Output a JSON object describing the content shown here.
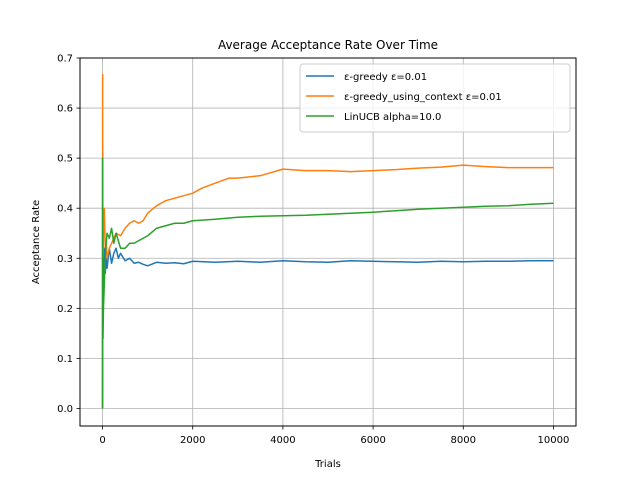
{
  "chart_data": {
    "type": "line",
    "title": "Average Acceptance Rate Over Time",
    "xlabel": "Trials",
    "ylabel": "Acceptance Rate",
    "xlim": [
      -500,
      10500
    ],
    "ylim": [
      -0.035,
      0.7
    ],
    "xticks": [
      0,
      2000,
      4000,
      6000,
      8000,
      10000
    ],
    "yticks": [
      0.0,
      0.1,
      0.2,
      0.3,
      0.4,
      0.5,
      0.6,
      0.7
    ],
    "xtick_labels": [
      "0",
      "2000",
      "4000",
      "6000",
      "8000",
      "10000"
    ],
    "ytick_labels": [
      "0.0",
      "0.1",
      "0.2",
      "0.3",
      "0.4",
      "0.5",
      "0.6",
      "0.7"
    ],
    "grid": true,
    "legend_position": "top-right",
    "series": [
      {
        "name": "ε-greedy ε=0.01",
        "color": "#1f77b4",
        "points": [
          [
            0,
            0.0
          ],
          [
            2,
            0.5
          ],
          [
            5,
            0.3
          ],
          [
            10,
            0.2
          ],
          [
            20,
            0.28
          ],
          [
            40,
            0.32
          ],
          [
            60,
            0.27
          ],
          [
            80,
            0.3
          ],
          [
            100,
            0.28
          ],
          [
            150,
            0.32
          ],
          [
            200,
            0.29
          ],
          [
            250,
            0.31
          ],
          [
            300,
            0.32
          ],
          [
            350,
            0.3
          ],
          [
            400,
            0.31
          ],
          [
            500,
            0.295
          ],
          [
            600,
            0.3
          ],
          [
            700,
            0.29
          ],
          [
            800,
            0.292
          ],
          [
            900,
            0.288
          ],
          [
            1000,
            0.285
          ],
          [
            1200,
            0.292
          ],
          [
            1400,
            0.29
          ],
          [
            1600,
            0.291
          ],
          [
            1800,
            0.289
          ],
          [
            2000,
            0.294
          ],
          [
            2500,
            0.292
          ],
          [
            3000,
            0.294
          ],
          [
            3500,
            0.292
          ],
          [
            4000,
            0.295
          ],
          [
            4500,
            0.293
          ],
          [
            5000,
            0.292
          ],
          [
            5500,
            0.295
          ],
          [
            6000,
            0.294
          ],
          [
            6500,
            0.293
          ],
          [
            7000,
            0.292
          ],
          [
            7500,
            0.294
          ],
          [
            8000,
            0.293
          ],
          [
            8500,
            0.294
          ],
          [
            9000,
            0.294
          ],
          [
            9500,
            0.295
          ],
          [
            10000,
            0.295
          ]
        ]
      },
      {
        "name": "ε-greedy_using_context ε=0.01",
        "color": "#ff7f0e",
        "points": [
          [
            0,
            0.0
          ],
          [
            2,
            0.667
          ],
          [
            5,
            0.4
          ],
          [
            10,
            0.3
          ],
          [
            20,
            0.35
          ],
          [
            40,
            0.4
          ],
          [
            60,
            0.32
          ],
          [
            80,
            0.34
          ],
          [
            100,
            0.3
          ],
          [
            150,
            0.32
          ],
          [
            200,
            0.33
          ],
          [
            300,
            0.35
          ],
          [
            400,
            0.345
          ],
          [
            500,
            0.36
          ],
          [
            600,
            0.37
          ],
          [
            700,
            0.375
          ],
          [
            800,
            0.37
          ],
          [
            900,
            0.375
          ],
          [
            1000,
            0.39
          ],
          [
            1200,
            0.405
          ],
          [
            1400,
            0.415
          ],
          [
            1600,
            0.42
          ],
          [
            1800,
            0.425
          ],
          [
            2000,
            0.43
          ],
          [
            2200,
            0.44
          ],
          [
            2500,
            0.45
          ],
          [
            2800,
            0.46
          ],
          [
            3000,
            0.46
          ],
          [
            3500,
            0.465
          ],
          [
            4000,
            0.478
          ],
          [
            4500,
            0.475
          ],
          [
            5000,
            0.475
          ],
          [
            5500,
            0.473
          ],
          [
            6000,
            0.475
          ],
          [
            6500,
            0.477
          ],
          [
            7000,
            0.48
          ],
          [
            7500,
            0.482
          ],
          [
            8000,
            0.486
          ],
          [
            8500,
            0.483
          ],
          [
            9000,
            0.481
          ],
          [
            9500,
            0.481
          ],
          [
            10000,
            0.481
          ]
        ]
      },
      {
        "name": "LinUCB alpha=10.0",
        "color": "#2ca02c",
        "points": [
          [
            0,
            0.0
          ],
          [
            2,
            0.5
          ],
          [
            5,
            0.25
          ],
          [
            10,
            0.14
          ],
          [
            20,
            0.2
          ],
          [
            40,
            0.25
          ],
          [
            60,
            0.3
          ],
          [
            80,
            0.33
          ],
          [
            100,
            0.35
          ],
          [
            150,
            0.34
          ],
          [
            200,
            0.36
          ],
          [
            250,
            0.33
          ],
          [
            300,
            0.35
          ],
          [
            400,
            0.32
          ],
          [
            500,
            0.32
          ],
          [
            600,
            0.33
          ],
          [
            700,
            0.33
          ],
          [
            800,
            0.335
          ],
          [
            900,
            0.34
          ],
          [
            1000,
            0.345
          ],
          [
            1200,
            0.36
          ],
          [
            1400,
            0.365
          ],
          [
            1600,
            0.37
          ],
          [
            1800,
            0.37
          ],
          [
            2000,
            0.375
          ],
          [
            2500,
            0.378
          ],
          [
            3000,
            0.382
          ],
          [
            3500,
            0.384
          ],
          [
            4000,
            0.385
          ],
          [
            4500,
            0.386
          ],
          [
            5000,
            0.388
          ],
          [
            5500,
            0.39
          ],
          [
            6000,
            0.392
          ],
          [
            6500,
            0.395
          ],
          [
            7000,
            0.398
          ],
          [
            7500,
            0.4
          ],
          [
            8000,
            0.402
          ],
          [
            8500,
            0.404
          ],
          [
            9000,
            0.405
          ],
          [
            9500,
            0.408
          ],
          [
            10000,
            0.41
          ]
        ]
      }
    ]
  }
}
